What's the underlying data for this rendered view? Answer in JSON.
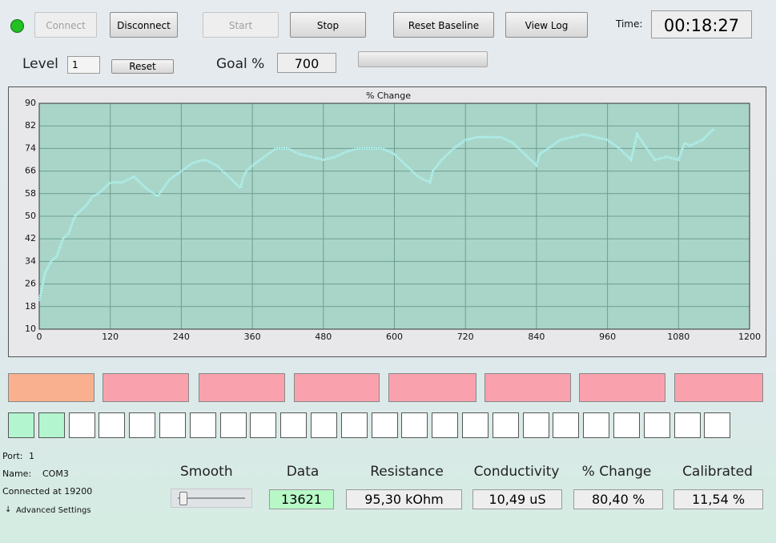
{
  "toolbar": {
    "connect": "Connect",
    "disconnect": "Disconnect",
    "start": "Start",
    "stop": "Stop",
    "reset_baseline": "Reset Baseline",
    "view_log": "View Log",
    "time_label": "Time:",
    "time": "00:18:27"
  },
  "level": {
    "label": "Level",
    "value": "1",
    "reset": "Reset"
  },
  "goal": {
    "label": "Goal %",
    "value": "700"
  },
  "chart_data": {
    "type": "line",
    "title": "% Change",
    "color": "#aef2ee",
    "x": [
      0,
      10,
      20,
      30,
      40,
      50,
      60,
      70,
      80,
      90,
      100,
      110,
      120,
      140,
      160,
      180,
      200,
      210,
      220,
      240,
      260,
      280,
      300,
      320,
      340,
      345,
      350,
      360,
      380,
      400,
      420,
      440,
      460,
      480,
      500,
      520,
      540,
      560,
      580,
      600,
      620,
      640,
      660,
      665,
      680,
      700,
      720,
      740,
      760,
      780,
      800,
      820,
      840,
      845,
      860,
      880,
      900,
      920,
      940,
      960,
      980,
      1000,
      1010,
      1020,
      1040,
      1060,
      1080,
      1090,
      1100,
      1120,
      1140
    ],
    "values": [
      20,
      30,
      34,
      36,
      42,
      44,
      50,
      52,
      54,
      57,
      58,
      60,
      62,
      62,
      64,
      60,
      57,
      60,
      63,
      66,
      69,
      70,
      68,
      64,
      60,
      64,
      66,
      68,
      71,
      74,
      74,
      72,
      71,
      70,
      71,
      73,
      74,
      74,
      74,
      72,
      68,
      64,
      62,
      66,
      70,
      74,
      77,
      78,
      78,
      78,
      76,
      72,
      68,
      72,
      74,
      77,
      78,
      79,
      78,
      77,
      74,
      70,
      79,
      76,
      70,
      71,
      70,
      76,
      75,
      77,
      81
    ],
    "xlim": [
      0,
      1200
    ],
    "xticks": [
      0,
      120,
      240,
      360,
      480,
      600,
      720,
      840,
      960,
      1080,
      1200
    ],
    "ylim": [
      10,
      90
    ],
    "yticks": [
      10,
      18,
      26,
      34,
      42,
      50,
      58,
      66,
      74,
      82,
      90
    ],
    "grid": true
  },
  "status": {
    "port_label": "Port:",
    "port": "1",
    "name_label": "Name:",
    "name": "COM3",
    "connected": "Connected at 19200",
    "advanced": "Advanced Settings"
  },
  "smooth": {
    "label": "Smooth"
  },
  "readouts": [
    {
      "label": "Data",
      "value": "13621"
    },
    {
      "label": "Resistance",
      "value": "95,30 kOhm"
    },
    {
      "label": "Conductivity",
      "value": "10,49 uS"
    },
    {
      "label": "% Change",
      "value": "80,40 %"
    },
    {
      "label": "Calibrated",
      "value": "11,54 %"
    }
  ]
}
